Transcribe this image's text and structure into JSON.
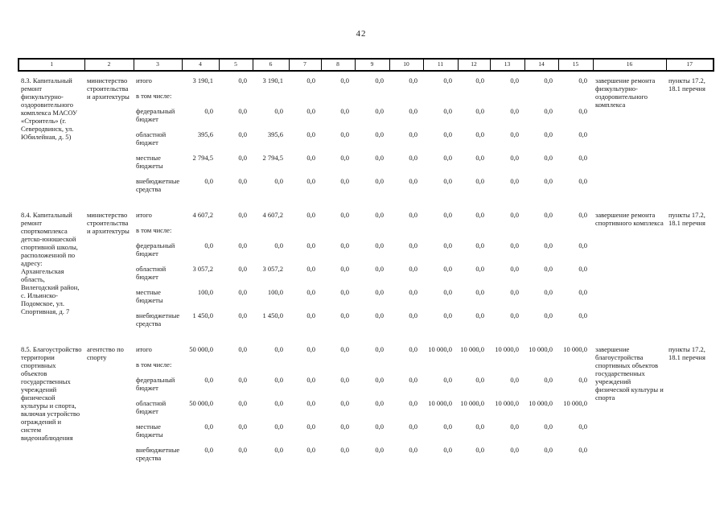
{
  "page": {
    "number": "42"
  },
  "table": {
    "column_numbers": [
      "1",
      "2",
      "3",
      "4",
      "5",
      "6",
      "7",
      "8",
      "9",
      "10",
      "11",
      "12",
      "13",
      "14",
      "15",
      "16",
      "17"
    ],
    "rows": [
      {
        "name": "8.3. Капитальный ремонт физкультурно-оздоровительного комплекса МАСОУ «Строитель» (г. Северодвинск, ул. Юбилейная, д. 5)",
        "executor": "министерство строительства и архитектуры",
        "result": "завершение ремонта физкультурно-оздоровительного комплекса",
        "reference": "пункты 17.2, 18.1 перечня",
        "budget_rows": [
          {
            "label": "итого",
            "values": [
              "3 190,1",
              "0,0",
              "3 190,1",
              "0,0",
              "0,0",
              "0,0",
              "0,0",
              "0,0",
              "0,0",
              "0,0",
              "0,0",
              "0,0"
            ]
          },
          {
            "label": "в том числе:",
            "values": []
          },
          {
            "label": "федеральный бюджет",
            "values": [
              "0,0",
              "0,0",
              "0,0",
              "0,0",
              "0,0",
              "0,0",
              "0,0",
              "0,0",
              "0,0",
              "0,0",
              "0,0",
              "0,0"
            ]
          },
          {
            "label": "областной бюджет",
            "values": [
              "395,6",
              "0,0",
              "395,6",
              "0,0",
              "0,0",
              "0,0",
              "0,0",
              "0,0",
              "0,0",
              "0,0",
              "0,0",
              "0,0"
            ]
          },
          {
            "label": "местные бюджеты",
            "values": [
              "2 794,5",
              "0,0",
              "2 794,5",
              "0,0",
              "0,0",
              "0,0",
              "0,0",
              "0,0",
              "0,0",
              "0,0",
              "0,0",
              "0,0"
            ]
          },
          {
            "label": "внебюджетные средства",
            "values": [
              "0,0",
              "0,0",
              "0,0",
              "0,0",
              "0,0",
              "0,0",
              "0,0",
              "0,0",
              "0,0",
              "0,0",
              "0,0",
              "0,0"
            ]
          }
        ]
      },
      {
        "name": "8.4. Капитальный ремонт спорткомплекса детско-юношеской спортивной школы, расположенной по адресу: Архангельская область, Вилегодский район, с. Ильинско-Подомское, ул. Спортивная, д. 7",
        "executor": "министерство строительства и архитектуры",
        "result": "завершение ремонта спортивного комплекса",
        "reference": "пункты 17.2, 18.1 перечня",
        "budget_rows": [
          {
            "label": "итого",
            "values": [
              "4 607,2",
              "0,0",
              "4 607,2",
              "0,0",
              "0,0",
              "0,0",
              "0,0",
              "0,0",
              "0,0",
              "0,0",
              "0,0",
              "0,0"
            ]
          },
          {
            "label": "в том числе:",
            "values": []
          },
          {
            "label": "федеральный бюджет",
            "values": [
              "0,0",
              "0,0",
              "0,0",
              "0,0",
              "0,0",
              "0,0",
              "0,0",
              "0,0",
              "0,0",
              "0,0",
              "0,0",
              "0,0"
            ]
          },
          {
            "label": "областной бюджет",
            "values": [
              "3 057,2",
              "0,0",
              "3 057,2",
              "0,0",
              "0,0",
              "0,0",
              "0,0",
              "0,0",
              "0,0",
              "0,0",
              "0,0",
              "0,0"
            ]
          },
          {
            "label": "местные бюджеты",
            "values": [
              "100,0",
              "0,0",
              "100,0",
              "0,0",
              "0,0",
              "0,0",
              "0,0",
              "0,0",
              "0,0",
              "0,0",
              "0,0",
              "0,0"
            ]
          },
          {
            "label": "внебюджетные средства",
            "values": [
              "1 450,0",
              "0,0",
              "1 450,0",
              "0,0",
              "0,0",
              "0,0",
              "0,0",
              "0,0",
              "0,0",
              "0,0",
              "0,0",
              "0,0"
            ]
          }
        ]
      },
      {
        "name": "8.5. Благоустройство территории спортивных объектов государственных учреждений физической культуры и спорта, включая устройство ограждений и систем видеонаблюдения",
        "executor": "агентство по спорту",
        "result": "завершение благоустройства спортивных объектов государственных учреждений физической культуры и спорта",
        "reference": "пункты 17.2, 18.1 перечня",
        "budget_rows": [
          {
            "label": "итого",
            "values": [
              "50 000,0",
              "0,0",
              "0,0",
              "0,0",
              "0,0",
              "0,0",
              "0,0",
              "10 000,0",
              "10 000,0",
              "10 000,0",
              "10 000,0",
              "10 000,0"
            ]
          },
          {
            "label": "в том числе:",
            "values": []
          },
          {
            "label": "федеральный бюджет",
            "values": [
              "0,0",
              "0,0",
              "0,0",
              "0,0",
              "0,0",
              "0,0",
              "0,0",
              "0,0",
              "0,0",
              "0,0",
              "0,0",
              "0,0"
            ]
          },
          {
            "label": "областной бюджет",
            "values": [
              "50 000,0",
              "0,0",
              "0,0",
              "0,0",
              "0,0",
              "0,0",
              "0,0",
              "10 000,0",
              "10 000,0",
              "10 000,0",
              "10 000,0",
              "10 000,0"
            ]
          },
          {
            "label": "местные бюджеты",
            "values": [
              "0,0",
              "0,0",
              "0,0",
              "0,0",
              "0,0",
              "0,0",
              "0,0",
              "0,0",
              "0,0",
              "0,0",
              "0,0",
              "0,0"
            ]
          },
          {
            "label": "внебюджетные средства",
            "values": [
              "0,0",
              "0,0",
              "0,0",
              "0,0",
              "0,0",
              "0,0",
              "0,0",
              "0,0",
              "0,0",
              "0,0",
              "0,0",
              "0,0"
            ]
          }
        ]
      }
    ]
  }
}
